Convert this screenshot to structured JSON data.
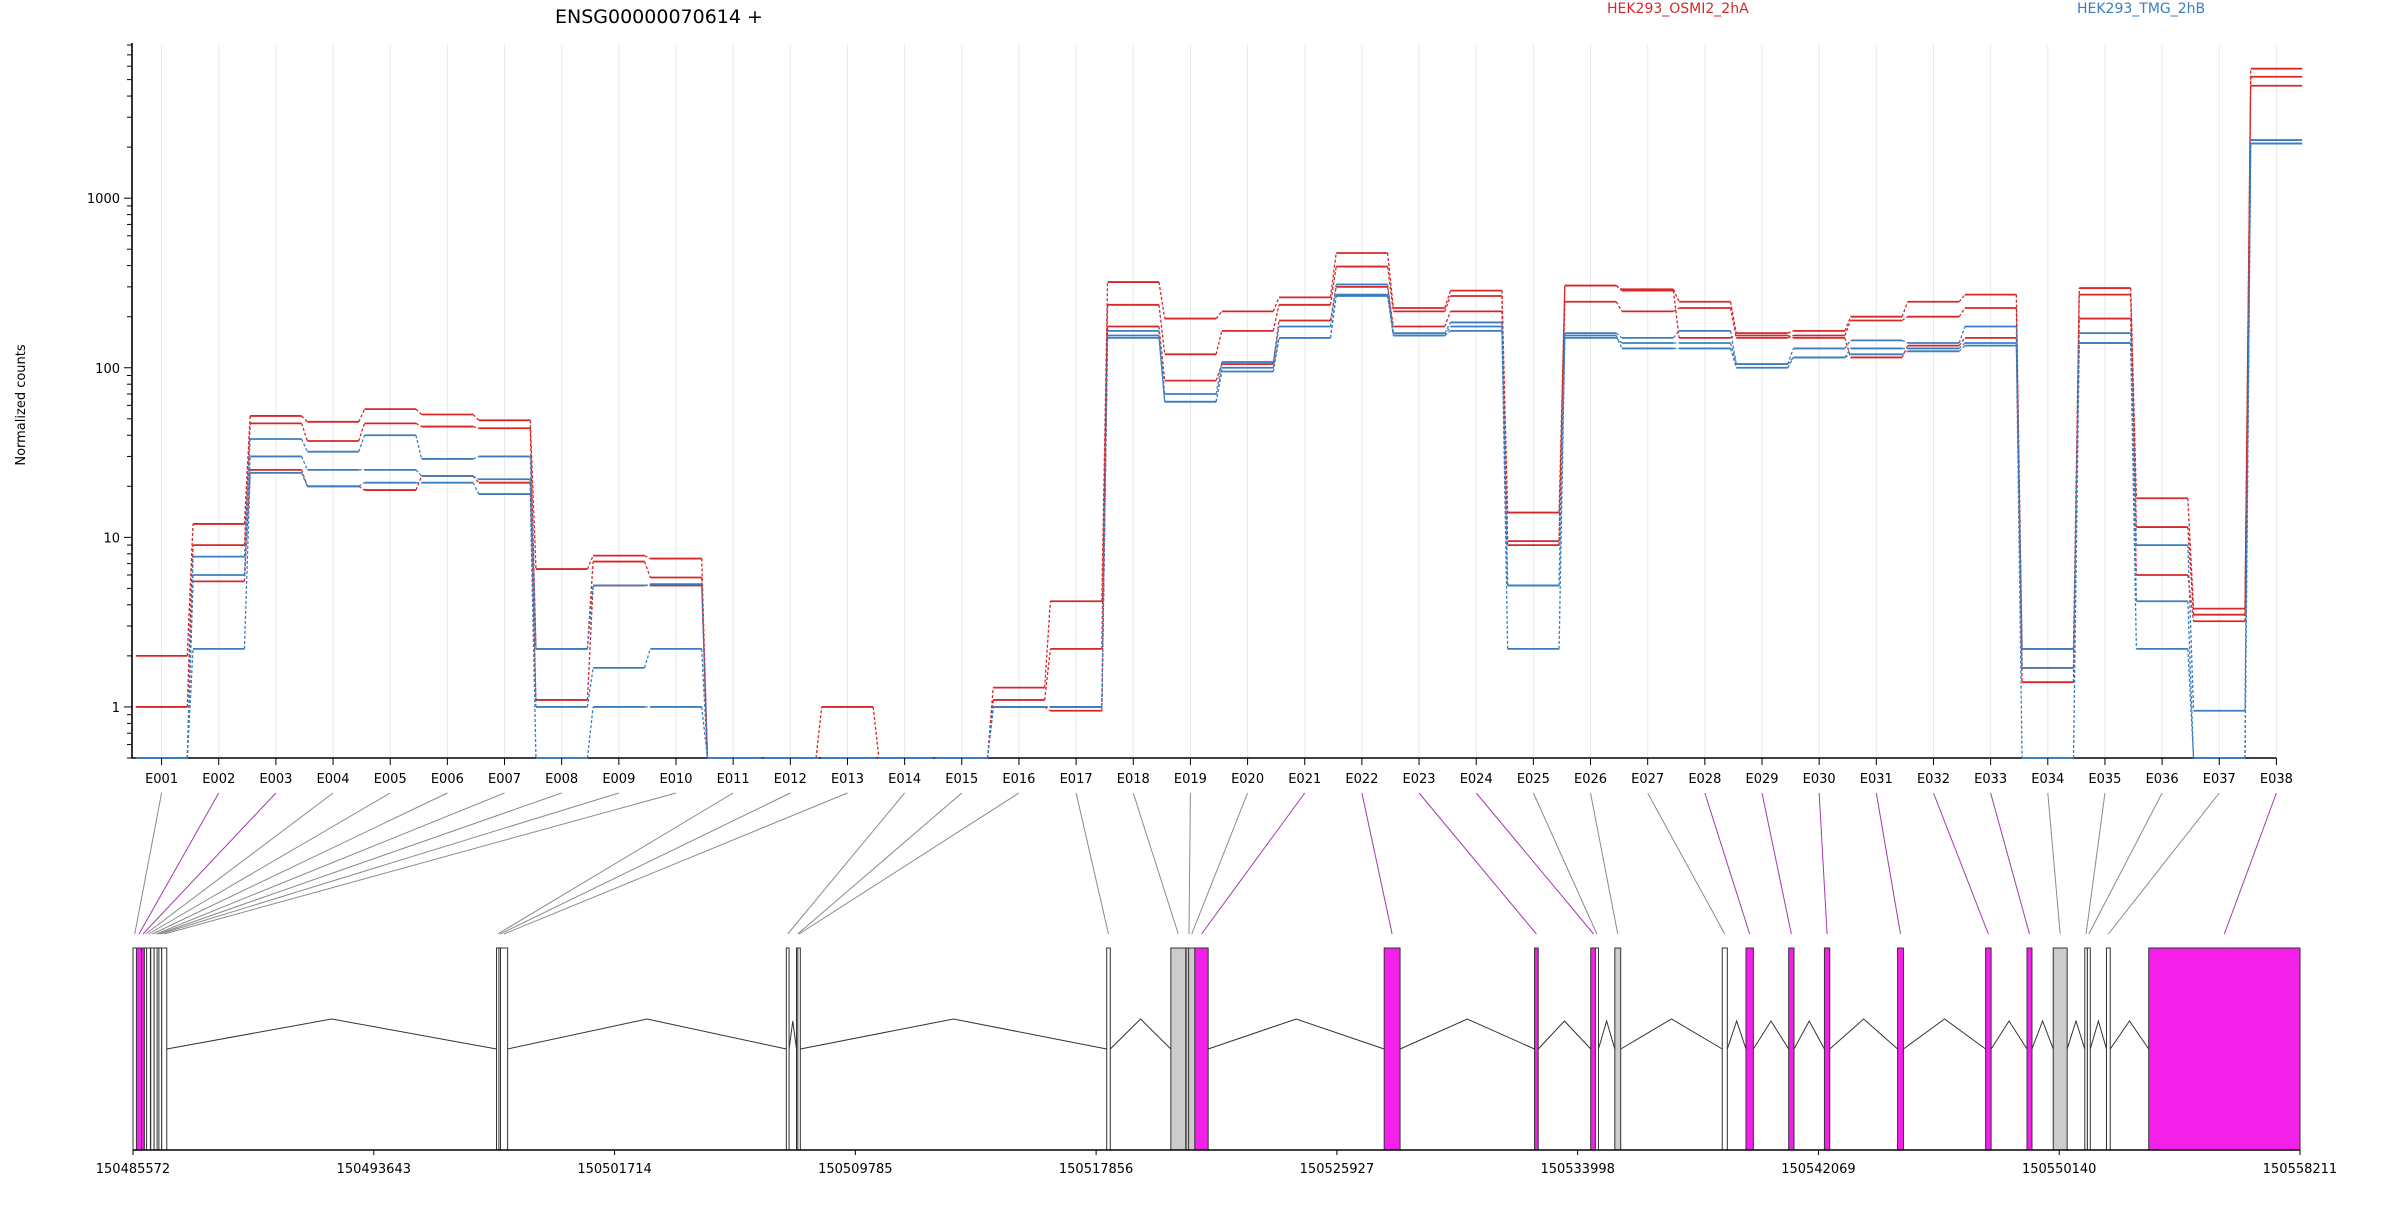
{
  "chart_data": {
    "type": "line",
    "title": "ENSG00000070614 +",
    "ylabel": "Normalized counts",
    "xlabel": "",
    "yscale": "log",
    "ylim": [
      0.5,
      8000
    ],
    "y_ticks": [
      1,
      10,
      100,
      1000
    ],
    "y_tick_labels": [
      "1",
      "10",
      "100",
      "1000"
    ],
    "grid": "vertical",
    "legend": [
      {
        "name": "HEK293_OSMI2_2hA",
        "color": "#d62728"
      },
      {
        "name": "HEK293_TMG_2hB",
        "color": "#3a7ebf"
      }
    ],
    "categories": [
      "E001",
      "E002",
      "E003",
      "E004",
      "E005",
      "E006",
      "E007",
      "E008",
      "E009",
      "E010",
      "E011",
      "E012",
      "E013",
      "E014",
      "E015",
      "E016",
      "E017",
      "E018",
      "E019",
      "E020",
      "E021",
      "E022",
      "E023",
      "E024",
      "E025",
      "E026",
      "E027",
      "E028",
      "E029",
      "E030",
      "E031",
      "E032",
      "E033",
      "E034",
      "E035",
      "E036",
      "E037",
      "E038"
    ],
    "series": [
      {
        "group": "HEK293_OSMI2_2hA",
        "color": "#d62728",
        "values": [
          2.0,
          12,
          52,
          48,
          57,
          53,
          49,
          6.5,
          7.8,
          7.5,
          0.5,
          0.5,
          1.0,
          0.5,
          0.5,
          1.3,
          4.2,
          320,
          195,
          215,
          260,
          475,
          225,
          285,
          14,
          305,
          290,
          245,
          160,
          165,
          200,
          245,
          270,
          2.2,
          295,
          17,
          3.8,
          5800
        ]
      },
      {
        "group": "HEK293_OSMI2_2hA",
        "color": "#d62728",
        "values": [
          1.0,
          9,
          47,
          37,
          47,
          45,
          44,
          2.2,
          7.2,
          5.8,
          0.5,
          0.5,
          0.5,
          0.5,
          0.5,
          1.1,
          2.2,
          235,
          120,
          165,
          235,
          395,
          215,
          265,
          9.5,
          245,
          215,
          225,
          150,
          155,
          190,
          200,
          225,
          1.4,
          270,
          11.5,
          3.5,
          5200
        ]
      },
      {
        "group": "HEK293_OSMI2_2hA",
        "color": "#d62728",
        "values": [
          0.5,
          5.5,
          25,
          20,
          19,
          23,
          21,
          1.1,
          5.2,
          5.2,
          0.5,
          0.5,
          0.5,
          0.5,
          0.5,
          1.0,
          0.95,
          175,
          84,
          105,
          190,
          300,
          175,
          215,
          9.0,
          305,
          285,
          150,
          155,
          150,
          115,
          135,
          150,
          1.7,
          195,
          6.0,
          3.2,
          4600
        ]
      },
      {
        "group": "HEK293_TMG_2hB",
        "color": "#3a7ebf",
        "values": [
          0.5,
          7.7,
          38,
          32,
          40,
          29,
          30,
          2.2,
          5.2,
          5.3,
          0.5,
          0.5,
          0.5,
          0.5,
          0.5,
          1.0,
          1.0,
          165,
          70,
          108,
          175,
          310,
          160,
          185,
          5.2,
          160,
          150,
          165,
          105,
          130,
          145,
          140,
          175,
          1.7,
          160,
          9.0,
          0.95,
          2200
        ]
      },
      {
        "group": "HEK293_TMG_2hB",
        "color": "#3a7ebf",
        "values": [
          0.5,
          6.0,
          30,
          25,
          25,
          23,
          22,
          1.0,
          1.7,
          2.2,
          0.5,
          0.5,
          0.5,
          0.5,
          0.5,
          1.0,
          1.0,
          155,
          63,
          100,
          150,
          265,
          155,
          175,
          5.2,
          150,
          140,
          140,
          105,
          115,
          130,
          130,
          140,
          2.2,
          140,
          4.2,
          0.5,
          2100
        ]
      },
      {
        "group": "HEK293_TMG_2hB",
        "color": "#3a7ebf",
        "values": [
          0.5,
          2.2,
          24,
          20,
          21,
          21,
          18,
          0.5,
          1.0,
          1.0,
          0.5,
          0.5,
          0.5,
          0.5,
          0.5,
          1.0,
          1.0,
          150,
          63,
          95,
          150,
          270,
          155,
          165,
          2.2,
          155,
          130,
          130,
          100,
          115,
          120,
          125,
          135,
          0.5,
          140,
          2.2,
          0.5,
          2100
        ]
      }
    ],
    "gene_model": {
      "coord_range": [
        150485572,
        150558211
      ],
      "coord_ticks": [
        150485572,
        150493643,
        150501714,
        150509785,
        150517856,
        150525927,
        150533998,
        150542069,
        150550140,
        150558211
      ],
      "coord_tick_labels": [
        "150485572",
        "150493643",
        "150501714",
        "150509785",
        "150517856",
        "150525927",
        "150533998",
        "150542069",
        "150550140",
        "150558211"
      ],
      "exons": [
        {
          "id": "E001",
          "start": 150485572,
          "end": 150485688,
          "fill": "#ffffff"
        },
        {
          "id": "E002",
          "start": 150485688,
          "end": 150485859,
          "fill": "#f220e8"
        },
        {
          "id": "E003",
          "start": 150485859,
          "end": 150485954,
          "fill": "#f220e8"
        },
        {
          "id": "E004",
          "start": 150485954,
          "end": 150486028,
          "fill": "#ffffff"
        },
        {
          "id": "E005",
          "start": 150486028,
          "end": 150486155,
          "fill": "#ffffff"
        },
        {
          "id": "E006",
          "start": 150486167,
          "end": 150486279,
          "fill": "#ffffff"
        },
        {
          "id": "E007",
          "start": 150486279,
          "end": 150486419,
          "fill": "#ffffff"
        },
        {
          "id": "E008",
          "start": 150486380,
          "end": 150486460,
          "fill": "#ffffff"
        },
        {
          "id": "E009",
          "start": 150486440,
          "end": 150486534,
          "fill": "#ffffff"
        },
        {
          "id": "E010",
          "start": 150486534,
          "end": 150486704,
          "fill": "#ffffff"
        },
        {
          "id": "E011",
          "start": 150497757,
          "end": 150497828,
          "fill": "#ffffff"
        },
        {
          "id": "E012",
          "start": 150497837,
          "end": 150497901,
          "fill": "#ffffff"
        },
        {
          "id": "E013",
          "start": 150497891,
          "end": 150498130,
          "fill": "#ffffff"
        },
        {
          "id": "E014",
          "start": 150507472,
          "end": 150507564,
          "fill": "#ffffff"
        },
        {
          "id": "E015",
          "start": 150507813,
          "end": 150507857,
          "fill": "#ffffff"
        },
        {
          "id": "E016",
          "start": 150507857,
          "end": 150507941,
          "fill": "#ffffff"
        },
        {
          "id": "E017",
          "start": 150518211,
          "end": 150518331,
          "fill": "#ffffff"
        },
        {
          "id": "E018",
          "start": 150520361,
          "end": 150520861,
          "fill": "#cccccc"
        },
        {
          "id": "E019",
          "start": 150520873,
          "end": 150521064,
          "fill": "#cccccc"
        },
        {
          "id": "E020",
          "start": 150520956,
          "end": 150521167,
          "fill": "#cccccc"
        },
        {
          "id": "E021",
          "start": 150521167,
          "end": 150521612,
          "fill": "#f220e8"
        },
        {
          "id": "E022",
          "start": 150527512,
          "end": 150528045,
          "fill": "#f220e8"
        },
        {
          "id": "E023",
          "start": 150532552,
          "end": 150532676,
          "fill": "#f220e8"
        },
        {
          "id": "E024",
          "start": 150534435,
          "end": 150534632,
          "fill": "#f220e8"
        },
        {
          "id": "E025",
          "start": 150534592,
          "end": 150534695,
          "fill": "#ffffff"
        },
        {
          "id": "E026",
          "start": 150535243,
          "end": 150535441,
          "fill": "#cccccc"
        },
        {
          "id": "E027",
          "start": 150538845,
          "end": 150539014,
          "fill": "#ffffff"
        },
        {
          "id": "E028",
          "start": 150539640,
          "end": 150539887,
          "fill": "#f220e8"
        },
        {
          "id": "E029",
          "start": 150541071,
          "end": 150541250,
          "fill": "#f220e8"
        },
        {
          "id": "E030",
          "start": 150542269,
          "end": 150542448,
          "fill": "#f220e8"
        },
        {
          "id": "E031",
          "start": 150544721,
          "end": 150544918,
          "fill": "#f220e8"
        },
        {
          "id": "E032",
          "start": 150547673,
          "end": 150547857,
          "fill": "#f220e8"
        },
        {
          "id": "E033",
          "start": 150549060,
          "end": 150549227,
          "fill": "#f220e8"
        },
        {
          "id": "E034",
          "start": 150549939,
          "end": 150550406,
          "fill": "#cccccc"
        },
        {
          "id": "E035",
          "start": 150550997,
          "end": 150551084,
          "fill": "#ffffff"
        },
        {
          "id": "E036",
          "start": 150551084,
          "end": 150551182,
          "fill": "#ffffff"
        },
        {
          "id": "E037",
          "start": 150551724,
          "end": 150551850,
          "fill": "#ffffff"
        },
        {
          "id": "E038",
          "start": 150553140,
          "end": 150558211,
          "fill": "#f220e8"
        }
      ]
    }
  }
}
